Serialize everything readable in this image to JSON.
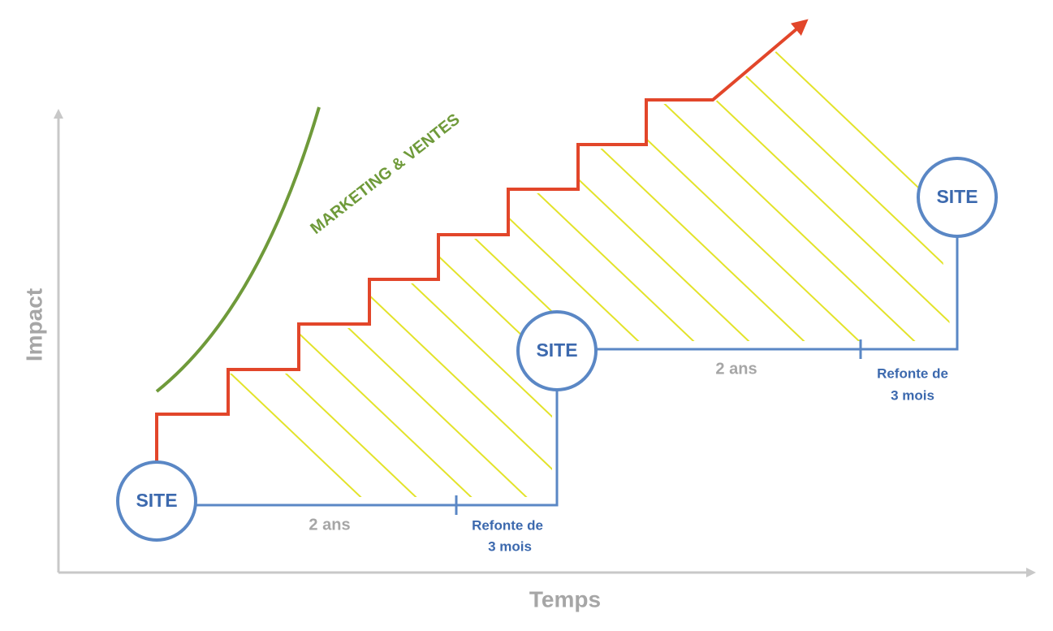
{
  "axes": {
    "y_label": "Impact",
    "x_label": "Temps"
  },
  "curve_label": "MARKETING & VENTES",
  "sites": [
    {
      "label": "SITE"
    },
    {
      "label": "SITE"
    },
    {
      "label": "SITE"
    }
  ],
  "cycles": [
    {
      "duration": "2 ans",
      "redesign": [
        "Refonte de",
        "3 mois"
      ]
    },
    {
      "duration": "2 ans",
      "redesign": [
        "Refonte de",
        "3 mois"
      ]
    }
  ]
}
